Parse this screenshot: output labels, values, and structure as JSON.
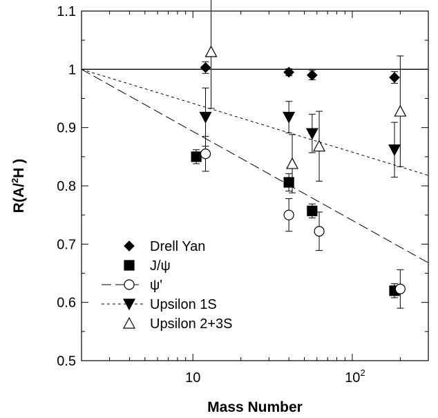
{
  "chart_data": {
    "type": "scatter",
    "xscale": "log",
    "xlim": [
      2,
      300
    ],
    "ylim": [
      0.5,
      1.1
    ],
    "xlabel": "Mass Number",
    "ylabel_parts": {
      "a": "R(A/",
      "sup": "2",
      "b": "H )"
    },
    "xticks": [
      {
        "value": 10,
        "base": "10",
        "exp": ""
      },
      {
        "value": 100,
        "base": "10",
        "exp": "2"
      }
    ],
    "yticks": [
      {
        "value": 0.5,
        "label": "0.5"
      },
      {
        "value": 0.6,
        "label": "0.6"
      },
      {
        "value": 0.7,
        "label": "0.7"
      },
      {
        "value": 0.8,
        "label": "0.8"
      },
      {
        "value": 0.9,
        "label": "0.9"
      },
      {
        "value": 1.0,
        "label": "1"
      },
      {
        "value": 1.1,
        "label": "1.1"
      }
    ],
    "series": [
      {
        "name": "Drell Yan",
        "marker": "diamond",
        "fill": "#000000",
        "points": [
          {
            "x": 12,
            "y": 1.003,
            "err": 0.01
          },
          {
            "x": 40,
            "y": 0.995,
            "err": 0.006
          },
          {
            "x": 56,
            "y": 0.99,
            "err": 0.008
          },
          {
            "x": 184,
            "y": 0.986,
            "err": 0.01
          }
        ]
      },
      {
        "name": "J/ψ",
        "marker": "square",
        "fill": "#000000",
        "points": [
          {
            "x": 10.5,
            "y": 0.85,
            "err": 0.012
          },
          {
            "x": 40,
            "y": 0.806,
            "err": 0.015
          },
          {
            "x": 56,
            "y": 0.757,
            "err": 0.012
          },
          {
            "x": 184,
            "y": 0.62,
            "err": 0.012
          }
        ]
      },
      {
        "name": "ψ'",
        "marker": "circle",
        "fill": "#ffffff",
        "points": [
          {
            "x": 12,
            "y": 0.855,
            "err": 0.03
          },
          {
            "x": 40,
            "y": 0.75,
            "err": 0.028
          },
          {
            "x": 62,
            "y": 0.722,
            "err": 0.033
          },
          {
            "x": 200,
            "y": 0.623,
            "err": 0.033
          }
        ]
      },
      {
        "name": "Upsilon 1S",
        "marker": "triangle-down",
        "fill": "#000000",
        "points": [
          {
            "x": 12,
            "y": 0.918,
            "err": 0.05
          },
          {
            "x": 40,
            "y": 0.918,
            "err": 0.027
          },
          {
            "x": 56,
            "y": 0.89,
            "err": 0.033
          },
          {
            "x": 184,
            "y": 0.862,
            "err": 0.047
          }
        ]
      },
      {
        "name": "Upsilon 2+3S",
        "marker": "triangle-up",
        "fill": "#ffffff",
        "points": [
          {
            "x": 13,
            "y": 1.03,
            "err": 0.097
          },
          {
            "x": 42,
            "y": 0.838,
            "err": 0.05
          },
          {
            "x": 62,
            "y": 0.868,
            "err": 0.06
          },
          {
            "x": 200,
            "y": 0.928,
            "err": 0.095
          }
        ]
      }
    ],
    "reference_lines": [
      {
        "style": "solid",
        "points": [
          [
            2,
            1.0
          ],
          [
            300,
            1.0
          ]
        ]
      },
      {
        "style": "dotted",
        "points": [
          [
            2,
            1.0
          ],
          [
            300,
            0.818
          ]
        ]
      },
      {
        "style": "dashed",
        "points": [
          [
            2,
            1.0
          ],
          [
            300,
            0.668
          ]
        ]
      }
    ],
    "legend": {
      "position": "bottom-left",
      "entries": [
        {
          "label": "Drell Yan",
          "marker": "diamond",
          "fill": "#000000",
          "line": "none"
        },
        {
          "label": "J/ψ",
          "marker": "square",
          "fill": "#000000",
          "line": "none"
        },
        {
          "label": "ψ'",
          "marker": "circle",
          "fill": "#ffffff",
          "line": "dashed"
        },
        {
          "label": "Upsilon 1S",
          "marker": "triangle-down",
          "fill": "#000000",
          "line": "dotted"
        },
        {
          "label": "Upsilon 2+3S",
          "marker": "triangle-up",
          "fill": "#ffffff",
          "line": "none"
        }
      ]
    },
    "grid": false
  }
}
